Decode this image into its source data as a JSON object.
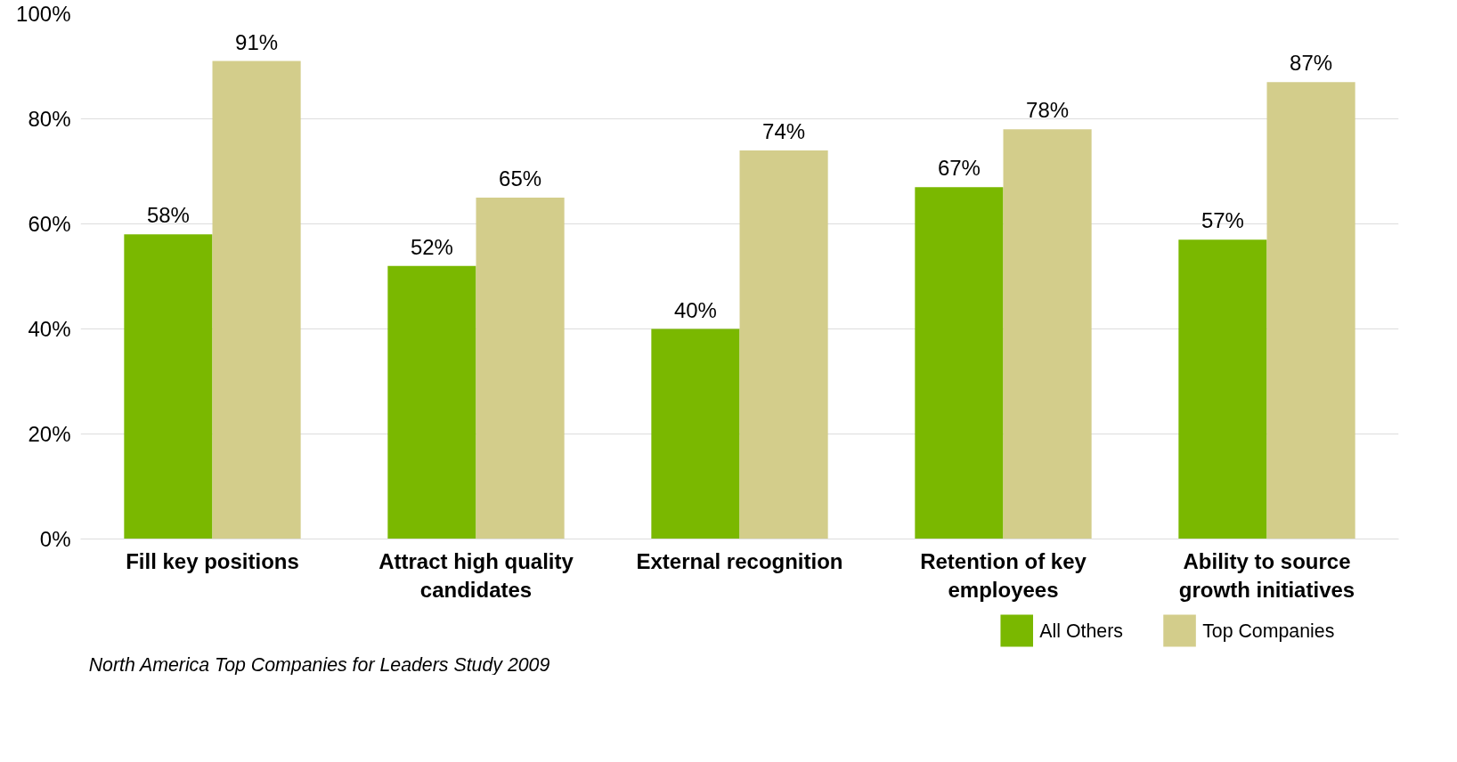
{
  "chart_data": {
    "type": "bar",
    "categories": [
      "Fill key positions",
      "Attract high quality candidates",
      "External recognition",
      "Retention of key employees",
      "Ability to source growth initiatives"
    ],
    "series": [
      {
        "name": "All Others",
        "color": "#7ab800",
        "values": [
          58,
          52,
          40,
          67,
          57
        ]
      },
      {
        "name": "Top Companies",
        "color": "#d3cd8b",
        "values": [
          91,
          65,
          74,
          78,
          87
        ]
      }
    ],
    "ylim": [
      0,
      100
    ],
    "yticks": [
      {
        "value": 0,
        "label": "0%"
      },
      {
        "value": 20,
        "label": "20%"
      },
      {
        "value": 40,
        "label": "40%"
      },
      {
        "value": 60,
        "label": "60%"
      },
      {
        "value": 80,
        "label": "80%"
      },
      {
        "value": 100,
        "label": "100%"
      }
    ],
    "value_labels": [
      [
        "58%",
        "52%",
        "40%",
        "67%",
        "57%"
      ],
      [
        "91%",
        "65%",
        "74%",
        "78%",
        "87%"
      ]
    ],
    "grid": "y",
    "legend": "bottom right",
    "annotations": [
      "North America Top Companies for Leaders Study 2009"
    ]
  }
}
